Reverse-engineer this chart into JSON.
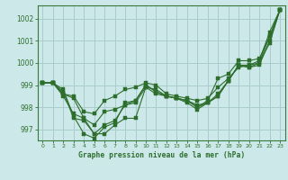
{
  "title": "Graphe pression niveau de la mer (hPa)",
  "background_color": "#cce8e8",
  "grid_color": "#aacccc",
  "line_color": "#2d6e2d",
  "marker_color": "#2d6e2d",
  "xlim": [
    -0.5,
    23.5
  ],
  "ylim": [
    996.5,
    1002.6
  ],
  "yticks": [
    997,
    998,
    999,
    1000,
    1001,
    1002
  ],
  "xticks": [
    0,
    1,
    2,
    3,
    4,
    5,
    6,
    7,
    8,
    9,
    10,
    11,
    12,
    13,
    14,
    15,
    16,
    17,
    18,
    19,
    20,
    21,
    22,
    23
  ],
  "series": [
    [
      999.1,
      999.1,
      998.6,
      998.5,
      997.8,
      997.7,
      998.3,
      998.5,
      998.8,
      998.9,
      999.1,
      999.0,
      998.6,
      998.5,
      998.4,
      998.3,
      998.4,
      998.9,
      999.3,
      999.8,
      999.9,
      1000.1,
      1001.4,
      1002.4
    ],
    [
      999.1,
      999.1,
      998.6,
      998.4,
      997.5,
      997.2,
      997.8,
      997.9,
      998.1,
      998.2,
      998.9,
      998.8,
      998.5,
      998.4,
      998.3,
      998.0,
      998.2,
      998.6,
      999.2,
      999.9,
      999.9,
      1000.0,
      1001.2,
      1002.4
    ],
    [
      999.1,
      999.1,
      998.5,
      997.7,
      997.5,
      996.8,
      997.2,
      997.4,
      998.1,
      998.3,
      999.0,
      998.7,
      998.5,
      998.4,
      998.3,
      998.1,
      998.2,
      998.5,
      999.2,
      999.9,
      999.8,
      999.9,
      1001.0,
      1002.4
    ],
    [
      999.1,
      999.1,
      998.7,
      997.5,
      997.4,
      996.8,
      996.8,
      997.2,
      997.5,
      997.5,
      998.9,
      998.6,
      998.5,
      998.4,
      998.2,
      997.9,
      998.2,
      998.5,
      999.2,
      999.9,
      999.8,
      1000.0,
      1000.9,
      1002.4
    ]
  ],
  "series_single": [
    999.1,
    999.1,
    998.8,
    997.6,
    996.8,
    996.6,
    997.1,
    997.3,
    998.2,
    998.3,
    999.0,
    998.7,
    998.5,
    998.4,
    998.3,
    998.0,
    998.3,
    999.3,
    999.5,
    1000.1,
    1000.1,
    1000.2,
    1001.2,
    1002.4
  ]
}
